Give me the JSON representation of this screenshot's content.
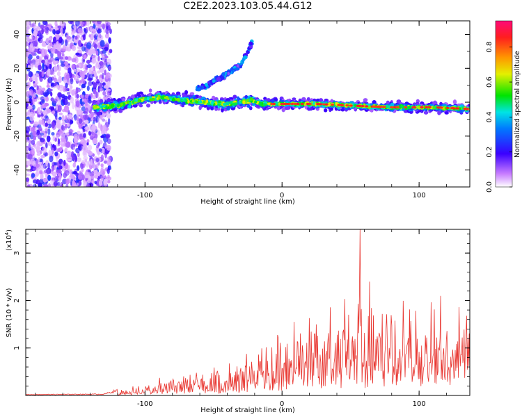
{
  "title": "C2E2.2023.103.05.44.G12",
  "chart_data": [
    {
      "type": "heatmap",
      "name": "spectrogram",
      "xlabel": "Height of straight line (km)",
      "ylabel": "Frequency (Hz)",
      "xlim": [
        -187,
        137
      ],
      "ylim": [
        -50,
        48
      ],
      "xticks": [
        -100,
        0,
        100
      ],
      "yticks": [
        -40,
        -20,
        0,
        20,
        40
      ],
      "ridge": [
        {
          "x": -135,
          "y": -3
        },
        {
          "x": -120,
          "y": -2
        },
        {
          "x": -100,
          "y": 2
        },
        {
          "x": -85,
          "y": 3
        },
        {
          "x": -70,
          "y": 1
        },
        {
          "x": -55,
          "y": 0
        },
        {
          "x": -40,
          "y": -1
        },
        {
          "x": -30,
          "y": 0
        },
        {
          "x": -22,
          "y": 1
        },
        {
          "x": -15,
          "y": -1
        },
        {
          "x": 0,
          "y": -1
        },
        {
          "x": 25,
          "y": -1
        },
        {
          "x": 50,
          "y": -2
        },
        {
          "x": 80,
          "y": -3
        },
        {
          "x": 110,
          "y": -3
        },
        {
          "x": 137,
          "y": -4
        }
      ],
      "branch": [
        {
          "x": -60,
          "y": 8
        },
        {
          "x": -50,
          "y": 12
        },
        {
          "x": -42,
          "y": 16
        },
        {
          "x": -30,
          "y": 22
        },
        {
          "x": -25,
          "y": 30
        },
        {
          "x": -22,
          "y": 35
        }
      ],
      "colorbar": {
        "label": "Normalized spectral amplitude",
        "range": [
          0,
          0.95
        ],
        "ticks": [
          "0.0",
          "0.2",
          "0.4",
          "0.6",
          "0.8"
        ]
      }
    },
    {
      "type": "line",
      "name": "snr",
      "xlabel": "Height of straight line (km)",
      "ylabel": "SNR (10 * v/v)",
      "yscale_label": "(x10",
      "yscale_exp": "4",
      "xlim": [
        -187,
        137
      ],
      "ylim": [
        0,
        3.5
      ],
      "xticks": [
        -100,
        0,
        100
      ],
      "yticks": [
        1,
        2,
        3
      ],
      "color": "#e8352f",
      "envelope": [
        {
          "x": -187,
          "y": 0.02
        },
        {
          "x": -130,
          "y": 0.03
        },
        {
          "x": -120,
          "y": 0.12
        },
        {
          "x": -100,
          "y": 0.25
        },
        {
          "x": -80,
          "y": 0.45
        },
        {
          "x": -60,
          "y": 0.55
        },
        {
          "x": -40,
          "y": 0.7
        },
        {
          "x": -25,
          "y": 0.9
        },
        {
          "x": -10,
          "y": 1.15
        },
        {
          "x": 0,
          "y": 1.4
        },
        {
          "x": 10,
          "y": 1.6
        },
        {
          "x": 25,
          "y": 1.85
        },
        {
          "x": 40,
          "y": 2.1
        },
        {
          "x": 55,
          "y": 2.4
        },
        {
          "x": 70,
          "y": 2.3
        },
        {
          "x": 90,
          "y": 2.1
        },
        {
          "x": 110,
          "y": 1.9
        },
        {
          "x": 137,
          "y": 1.85
        }
      ],
      "peak": {
        "x": 57,
        "y": 3.5
      }
    }
  ]
}
